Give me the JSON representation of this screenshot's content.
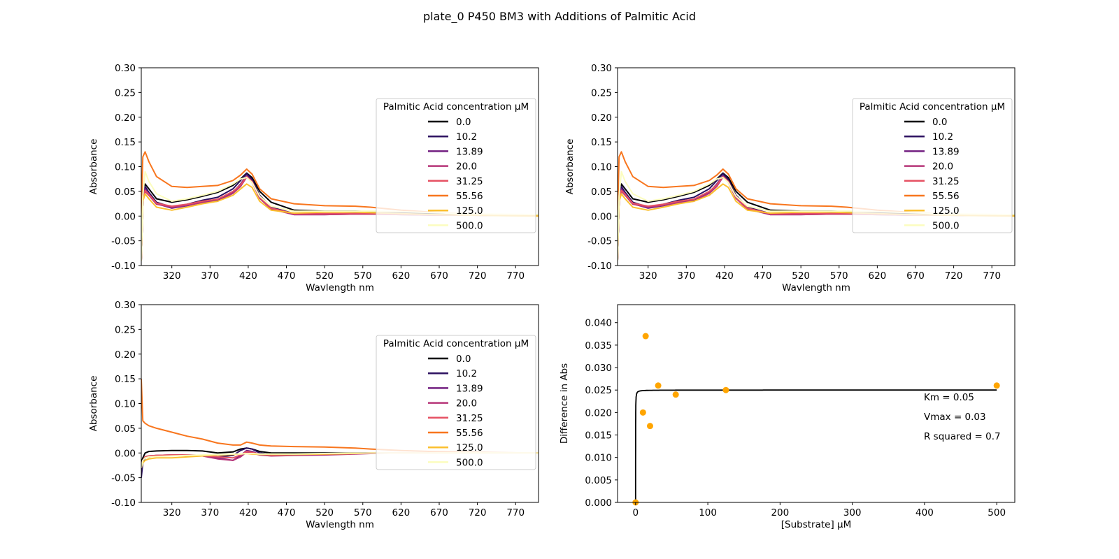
{
  "figure_title": "plate_0 P450 BM3 with Additions of Palmitic Acid",
  "colors": {
    "series": [
      "#000004",
      "#2d1160",
      "#721f81",
      "#b63679",
      "#e65163",
      "#f8761e",
      "#fbbf2d",
      "#fcfdbf"
    ],
    "fit_line": "#000000",
    "points": "#ffa500"
  },
  "chart_data": [
    {
      "type": "line",
      "xlabel": "Wavlength nm",
      "ylabel": "Absorbance",
      "xlim": [
        280,
        800
      ],
      "ylim": [
        -0.1,
        0.3
      ],
      "xticks": [
        320,
        370,
        420,
        470,
        520,
        570,
        620,
        670,
        720,
        770
      ],
      "yticks": [
        -0.1,
        -0.05,
        0.0,
        0.05,
        0.1,
        0.15,
        0.2,
        0.25,
        0.3
      ],
      "legend_title": "Palmitic Acid concentration µM",
      "legend_position": "center-right",
      "grid": false,
      "x": [
        280,
        282,
        285,
        290,
        300,
        320,
        340,
        360,
        380,
        400,
        410,
        418,
        425,
        435,
        450,
        480,
        520,
        560,
        580,
        620,
        660,
        700,
        740,
        800
      ],
      "series": [
        {
          "name": "0.0",
          "values": [
            -0.09,
            0.03,
            0.065,
            0.055,
            0.035,
            0.028,
            0.033,
            0.04,
            0.048,
            0.062,
            0.075,
            0.087,
            0.078,
            0.05,
            0.028,
            0.012,
            0.01,
            0.01,
            0.009,
            0.007,
            0.005,
            0.004,
            0.003,
            0.003
          ]
        },
        {
          "name": "10.2",
          "values": [
            -0.09,
            0.03,
            0.06,
            0.048,
            0.028,
            0.018,
            0.024,
            0.032,
            0.038,
            0.055,
            0.072,
            0.086,
            0.074,
            0.042,
            0.018,
            0.005,
            0.004,
            0.005,
            0.005,
            0.004,
            0.003,
            0.002,
            0.002,
            0.002
          ]
        },
        {
          "name": "13.89",
          "values": [
            -0.09,
            0.03,
            0.055,
            0.045,
            0.025,
            0.016,
            0.021,
            0.028,
            0.032,
            0.048,
            0.065,
            0.082,
            0.07,
            0.038,
            0.015,
            0.003,
            0.003,
            0.004,
            0.004,
            0.003,
            0.002,
            0.002,
            0.001,
            0.001
          ]
        },
        {
          "name": "20.0",
          "values": [
            -0.09,
            0.03,
            0.05,
            0.042,
            0.024,
            0.018,
            0.022,
            0.027,
            0.03,
            0.046,
            0.06,
            0.079,
            0.068,
            0.036,
            0.014,
            0.003,
            0.003,
            0.004,
            0.004,
            0.003,
            0.002,
            0.002,
            0.001,
            0.001
          ]
        },
        {
          "name": "31.25",
          "values": [
            -0.09,
            0.03,
            0.052,
            0.044,
            0.026,
            0.02,
            0.024,
            0.03,
            0.034,
            0.05,
            0.063,
            0.08,
            0.07,
            0.038,
            0.016,
            0.005,
            0.005,
            0.005,
            0.005,
            0.004,
            0.003,
            0.002,
            0.002,
            0.001
          ]
        },
        {
          "name": "55.56",
          "values": [
            0.0,
            0.12,
            0.13,
            0.11,
            0.08,
            0.06,
            0.058,
            0.06,
            0.062,
            0.072,
            0.083,
            0.095,
            0.085,
            0.055,
            0.035,
            0.025,
            0.021,
            0.02,
            0.018,
            0.012,
            0.008,
            0.005,
            0.003,
            0.001
          ]
        },
        {
          "name": "125.0",
          "values": [
            -0.09,
            0.03,
            0.045,
            0.035,
            0.018,
            0.012,
            0.018,
            0.025,
            0.03,
            0.042,
            0.055,
            0.065,
            0.058,
            0.03,
            0.012,
            0.006,
            0.008,
            0.008,
            0.007,
            0.005,
            0.003,
            0.002,
            0.001,
            0.0
          ]
        },
        {
          "name": "500.0",
          "values": [
            -0.09,
            0.04,
            0.09,
            0.07,
            0.045,
            0.03,
            0.035,
            0.042,
            0.05,
            0.065,
            0.075,
            0.078,
            0.068,
            0.04,
            0.02,
            0.01,
            0.01,
            0.01,
            0.01,
            0.009,
            0.007,
            0.005,
            0.004,
            0.003
          ]
        }
      ]
    },
    {
      "type": "line",
      "xlabel": "Wavlength nm",
      "ylabel": "Absorbance",
      "xlim": [
        280,
        800
      ],
      "ylim": [
        -0.1,
        0.3
      ],
      "xticks": [
        320,
        370,
        420,
        470,
        520,
        570,
        620,
        670,
        720,
        770
      ],
      "yticks": [
        -0.1,
        -0.05,
        0.0,
        0.05,
        0.1,
        0.15,
        0.2,
        0.25,
        0.3
      ],
      "legend_title": "Palmitic Acid concentration µM",
      "legend_position": "center-right",
      "grid": false,
      "x": [
        280,
        282,
        285,
        290,
        300,
        320,
        340,
        360,
        380,
        400,
        410,
        418,
        425,
        435,
        450,
        480,
        520,
        560,
        580,
        620,
        660,
        700,
        740,
        800
      ],
      "series": [
        {
          "name": "0.0",
          "values": [
            -0.09,
            0.03,
            0.065,
            0.055,
            0.035,
            0.028,
            0.033,
            0.04,
            0.048,
            0.062,
            0.075,
            0.087,
            0.078,
            0.05,
            0.028,
            0.012,
            0.01,
            0.01,
            0.009,
            0.007,
            0.005,
            0.004,
            0.003,
            0.003
          ]
        },
        {
          "name": "10.2",
          "values": [
            -0.09,
            0.03,
            0.06,
            0.048,
            0.028,
            0.018,
            0.024,
            0.032,
            0.038,
            0.055,
            0.072,
            0.086,
            0.074,
            0.042,
            0.018,
            0.005,
            0.004,
            0.005,
            0.005,
            0.004,
            0.003,
            0.002,
            0.002,
            0.002
          ]
        },
        {
          "name": "13.89",
          "values": [
            -0.09,
            0.03,
            0.055,
            0.045,
            0.025,
            0.016,
            0.021,
            0.028,
            0.032,
            0.048,
            0.065,
            0.082,
            0.07,
            0.038,
            0.015,
            0.003,
            0.003,
            0.004,
            0.004,
            0.003,
            0.002,
            0.002,
            0.001,
            0.001
          ]
        },
        {
          "name": "20.0",
          "values": [
            -0.09,
            0.03,
            0.05,
            0.042,
            0.024,
            0.018,
            0.022,
            0.027,
            0.03,
            0.046,
            0.06,
            0.079,
            0.068,
            0.036,
            0.014,
            0.003,
            0.003,
            0.004,
            0.004,
            0.003,
            0.002,
            0.002,
            0.001,
            0.001
          ]
        },
        {
          "name": "31.25",
          "values": [
            -0.09,
            0.03,
            0.052,
            0.044,
            0.026,
            0.02,
            0.024,
            0.03,
            0.034,
            0.05,
            0.063,
            0.08,
            0.07,
            0.038,
            0.016,
            0.005,
            0.005,
            0.005,
            0.005,
            0.004,
            0.003,
            0.002,
            0.002,
            0.001
          ]
        },
        {
          "name": "55.56",
          "values": [
            0.0,
            0.12,
            0.13,
            0.11,
            0.08,
            0.06,
            0.058,
            0.06,
            0.062,
            0.072,
            0.083,
            0.095,
            0.085,
            0.055,
            0.035,
            0.025,
            0.021,
            0.02,
            0.018,
            0.012,
            0.008,
            0.005,
            0.003,
            0.001
          ]
        },
        {
          "name": "125.0",
          "values": [
            -0.09,
            0.03,
            0.045,
            0.035,
            0.018,
            0.012,
            0.018,
            0.025,
            0.03,
            0.042,
            0.055,
            0.065,
            0.058,
            0.03,
            0.012,
            0.006,
            0.008,
            0.008,
            0.007,
            0.005,
            0.003,
            0.002,
            0.001,
            0.0
          ]
        },
        {
          "name": "500.0",
          "values": [
            -0.09,
            0.04,
            0.09,
            0.07,
            0.045,
            0.03,
            0.035,
            0.042,
            0.05,
            0.065,
            0.075,
            0.078,
            0.068,
            0.04,
            0.02,
            0.01,
            0.01,
            0.01,
            0.01,
            0.009,
            0.007,
            0.005,
            0.004,
            0.003
          ]
        }
      ]
    },
    {
      "type": "line",
      "xlabel": "Wavlength nm",
      "ylabel": "Absorbance",
      "xlim": [
        280,
        800
      ],
      "ylim": [
        -0.1,
        0.3
      ],
      "xticks": [
        320,
        370,
        420,
        470,
        520,
        570,
        620,
        670,
        720,
        770
      ],
      "yticks": [
        -0.1,
        -0.05,
        0.0,
        0.05,
        0.1,
        0.15,
        0.2,
        0.25,
        0.3
      ],
      "legend_title": "Palmitic Acid concentration µM",
      "legend_position": "center-right",
      "grid": false,
      "x": [
        280,
        282,
        285,
        290,
        300,
        320,
        340,
        360,
        380,
        400,
        410,
        418,
        425,
        435,
        450,
        480,
        520,
        560,
        580,
        620,
        660,
        700,
        740,
        800
      ],
      "series": [
        {
          "name": "0.0",
          "values": [
            -0.02,
            -0.01,
            0.0,
            0.003,
            0.004,
            0.005,
            0.005,
            0.004,
            0.0,
            0.002,
            0.008,
            0.01,
            0.008,
            0.003,
            0.0,
            0.0,
            0.0,
            0.0,
            0.0,
            0.0,
            0.0,
            0.0,
            0.0,
            0.0
          ]
        },
        {
          "name": "10.2",
          "values": [
            -0.05,
            -0.02,
            -0.01,
            -0.008,
            -0.006,
            -0.005,
            -0.005,
            -0.005,
            -0.008,
            -0.005,
            0.005,
            0.01,
            0.008,
            0.0,
            -0.003,
            -0.003,
            -0.002,
            0.0,
            0.0,
            0.0,
            0.0,
            0.0,
            0.0,
            0.0
          ]
        },
        {
          "name": "13.89",
          "values": [
            -0.03,
            -0.015,
            -0.008,
            -0.006,
            -0.005,
            -0.004,
            -0.004,
            -0.005,
            -0.01,
            -0.015,
            -0.005,
            0.005,
            0.003,
            -0.003,
            -0.005,
            -0.004,
            -0.003,
            -0.001,
            0.0,
            0.0,
            0.0,
            0.0,
            0.0,
            0.0
          ]
        },
        {
          "name": "20.0",
          "values": [
            -0.03,
            -0.015,
            -0.008,
            -0.006,
            -0.005,
            -0.004,
            -0.004,
            -0.006,
            -0.012,
            -0.015,
            -0.008,
            0.002,
            0.0,
            -0.004,
            -0.006,
            -0.005,
            -0.004,
            -0.002,
            -0.001,
            0.0,
            0.0,
            0.0,
            0.0,
            0.0
          ]
        },
        {
          "name": "31.25",
          "values": [
            -0.03,
            -0.015,
            -0.008,
            -0.006,
            -0.005,
            -0.004,
            -0.004,
            -0.005,
            -0.008,
            -0.01,
            -0.004,
            0.003,
            0.001,
            -0.002,
            -0.004,
            -0.003,
            -0.002,
            -0.001,
            0.0,
            0.0,
            0.0,
            0.0,
            0.0,
            0.0
          ]
        },
        {
          "name": "55.56",
          "values": [
            0.15,
            0.065,
            0.06,
            0.055,
            0.05,
            0.042,
            0.034,
            0.028,
            0.02,
            0.016,
            0.016,
            0.022,
            0.02,
            0.016,
            0.014,
            0.013,
            0.012,
            0.01,
            0.008,
            0.005,
            0.003,
            0.002,
            0.001,
            0.0
          ]
        },
        {
          "name": "125.0",
          "values": [
            -0.03,
            -0.02,
            -0.015,
            -0.012,
            -0.01,
            -0.01,
            -0.008,
            -0.006,
            -0.004,
            -0.003,
            -0.002,
            -0.001,
            -0.002,
            -0.003,
            -0.003,
            -0.003,
            -0.002,
            -0.001,
            0.0,
            0.0,
            0.0,
            0.0,
            0.0,
            0.0
          ]
        },
        {
          "name": "500.0",
          "values": [
            -0.03,
            -0.015,
            -0.01,
            -0.008,
            -0.007,
            -0.006,
            -0.005,
            -0.004,
            -0.003,
            -0.002,
            -0.002,
            -0.001,
            -0.001,
            -0.002,
            -0.002,
            -0.002,
            -0.001,
            0.0,
            0.0,
            0.0,
            0.0,
            0.0,
            0.0,
            0.0
          ]
        }
      ]
    },
    {
      "type": "scatter",
      "xlabel": "[Substrate] µM",
      "ylabel": "Difference in Abs",
      "xlim": [
        -25,
        525
      ],
      "ylim": [
        0.0,
        0.044
      ],
      "xticks": [
        0,
        100,
        200,
        300,
        400,
        500
      ],
      "yticks": [
        0.0,
        0.005,
        0.01,
        0.015,
        0.02,
        0.025,
        0.03,
        0.035,
        0.04
      ],
      "grid": false,
      "points": {
        "x": [
          0.0,
          10.2,
          13.89,
          20.0,
          31.25,
          55.56,
          125.0,
          500.0
        ],
        "y": [
          0.0,
          0.02,
          0.037,
          0.017,
          0.026,
          0.024,
          0.025,
          0.026
        ]
      },
      "fit": {
        "km": 0.05,
        "vmax": 0.025,
        "x_range": [
          0,
          500
        ]
      },
      "annotations": [
        "Km = 0.05",
        "Vmax = 0.03",
        "R squared = 0.7"
      ]
    }
  ]
}
